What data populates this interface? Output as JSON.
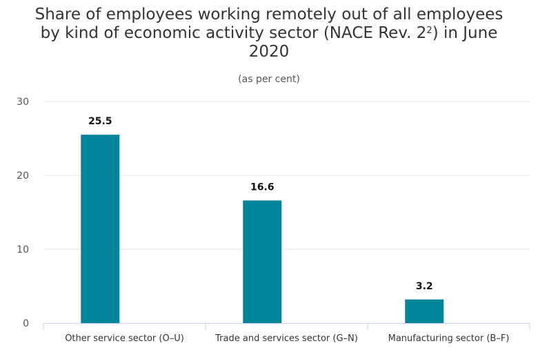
{
  "chart_data": {
    "type": "bar",
    "title_line1": "Share of employees working remotely out of all employees",
    "title_line2_pre": "by kind of economic activity sector (NACE Rev. 2",
    "title_footnote": "2",
    "title_line2_post": ") in June",
    "title_line3": "2020",
    "subtitle": "(as per cent)",
    "categories": [
      "Other service sector (O–U)",
      "Trade and services sector (G–N)",
      "Manufacturing sector (B–F)"
    ],
    "values": [
      25.5,
      16.6,
      3.2
    ],
    "value_labels": [
      "25.5",
      "16.6",
      "3.2"
    ],
    "ylim": [
      0,
      30
    ],
    "yticks": [
      0,
      10,
      20,
      30
    ],
    "grid": true,
    "colors": {
      "bar": "#00859B",
      "grid": "#e6e6e6",
      "axis": "#ccd6eb"
    }
  }
}
